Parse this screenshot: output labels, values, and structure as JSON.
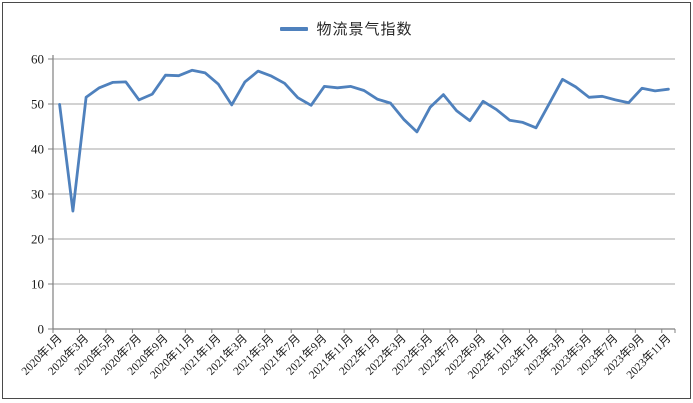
{
  "chart_data": {
    "type": "line",
    "title": "",
    "legend_position": "top",
    "grid": true,
    "xlabel": "",
    "ylabel": "",
    "ylim": [
      0,
      60
    ],
    "yticks": [
      0,
      10,
      20,
      30,
      40,
      50,
      60
    ],
    "x_label_every": 2,
    "categories": [
      "2020年1月",
      "2020年2月",
      "2020年3月",
      "2020年4月",
      "2020年5月",
      "2020年6月",
      "2020年7月",
      "2020年8月",
      "2020年9月",
      "2020年10月",
      "2020年11月",
      "2020年12月",
      "2021年1月",
      "2021年2月",
      "2021年3月",
      "2021年4月",
      "2021年5月",
      "2021年6月",
      "2021年7月",
      "2021年8月",
      "2021年9月",
      "2021年10月",
      "2021年11月",
      "2021年12月",
      "2022年1月",
      "2022年2月",
      "2022年3月",
      "2022年4月",
      "2022年5月",
      "2022年6月",
      "2022年7月",
      "2022年8月",
      "2022年9月",
      "2022年10月",
      "2022年11月",
      "2022年12月",
      "2023年1月",
      "2023年2月",
      "2023年3月",
      "2023年4月",
      "2023年5月",
      "2023年6月",
      "2023年7月",
      "2023年8月",
      "2023年9月",
      "2023年10月",
      "2023年11月"
    ],
    "series": [
      {
        "name": "物流景气指数",
        "color": "#4F81BD",
        "values": [
          49.9,
          26.2,
          51.5,
          53.6,
          54.8,
          54.9,
          50.9,
          52.2,
          56.4,
          56.3,
          57.5,
          56.9,
          54.4,
          49.8,
          54.9,
          57.3,
          56.2,
          54.6,
          51.4,
          49.7,
          53.9,
          53.6,
          53.9,
          53.0,
          51.1,
          50.2,
          46.6,
          43.8,
          49.3,
          52.1,
          48.5,
          46.3,
          50.6,
          48.8,
          46.4,
          45.9,
          44.7,
          50.1,
          55.5,
          53.8,
          51.5,
          51.7,
          50.9,
          50.3,
          53.5,
          52.9,
          53.3
        ]
      }
    ]
  },
  "colors": {
    "line": "#4F81BD",
    "gridline": "#a6a6a6",
    "axis": "#808080",
    "tick": "#808080",
    "text": "#1a1a1a",
    "border": "#4a4a4a",
    "background": "#ffffff"
  }
}
